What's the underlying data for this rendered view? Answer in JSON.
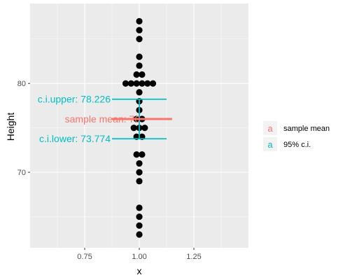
{
  "chart_data": {
    "type": "scatter",
    "subtype": "dotplot",
    "xlabel": "x",
    "ylabel": "Height",
    "xlim": [
      0.5,
      1.5
    ],
    "ylim": [
      61.5,
      89
    ],
    "x_ticks": [
      0.75,
      1.0,
      1.25
    ],
    "x_tick_labels": [
      "0.75",
      "1.00",
      "1.25"
    ],
    "y_ticks": [
      70,
      80
    ],
    "y_tick_labels": [
      "70",
      "80"
    ],
    "grid": true,
    "panel_background": "#ebebeb",
    "point_color": "#000000",
    "points": [
      {
        "y": 63,
        "count": 1
      },
      {
        "y": 64,
        "count": 1
      },
      {
        "y": 65,
        "count": 1
      },
      {
        "y": 66,
        "count": 1
      },
      {
        "y": 69,
        "count": 1
      },
      {
        "y": 70,
        "count": 1
      },
      {
        "y": 71,
        "count": 1
      },
      {
        "y": 72,
        "count": 2
      },
      {
        "y": 74,
        "count": 2
      },
      {
        "y": 75,
        "count": 3
      },
      {
        "y": 76,
        "count": 2
      },
      {
        "y": 77,
        "count": 1
      },
      {
        "y": 78,
        "count": 1
      },
      {
        "y": 79,
        "count": 1
      },
      {
        "y": 80,
        "count": 6
      },
      {
        "y": 81,
        "count": 2
      },
      {
        "y": 82,
        "count": 1
      },
      {
        "y": 83,
        "count": 1
      },
      {
        "y": 85,
        "count": 1
      },
      {
        "y": 86,
        "count": 1
      },
      {
        "y": 87,
        "count": 1
      }
    ],
    "sample_mean": {
      "value": 76,
      "label": "sample mean: 76",
      "x_range": [
        0.875,
        1.15
      ],
      "color": "#f8766d"
    },
    "confidence_interval": {
      "lower": 73.774,
      "upper": 78.226,
      "lower_label": "c.i.lower: 73.774",
      "upper_label": "c.i.upper: 78.226",
      "x_range": [
        0.875,
        1.125
      ],
      "color": "#00bfc4"
    },
    "legend": {
      "placement": "right",
      "key_glyph": "a",
      "entries": [
        {
          "label": "sample mean",
          "color": "#f8766d"
        },
        {
          "label": "95% c.i.",
          "color": "#00bfc4"
        }
      ]
    }
  }
}
